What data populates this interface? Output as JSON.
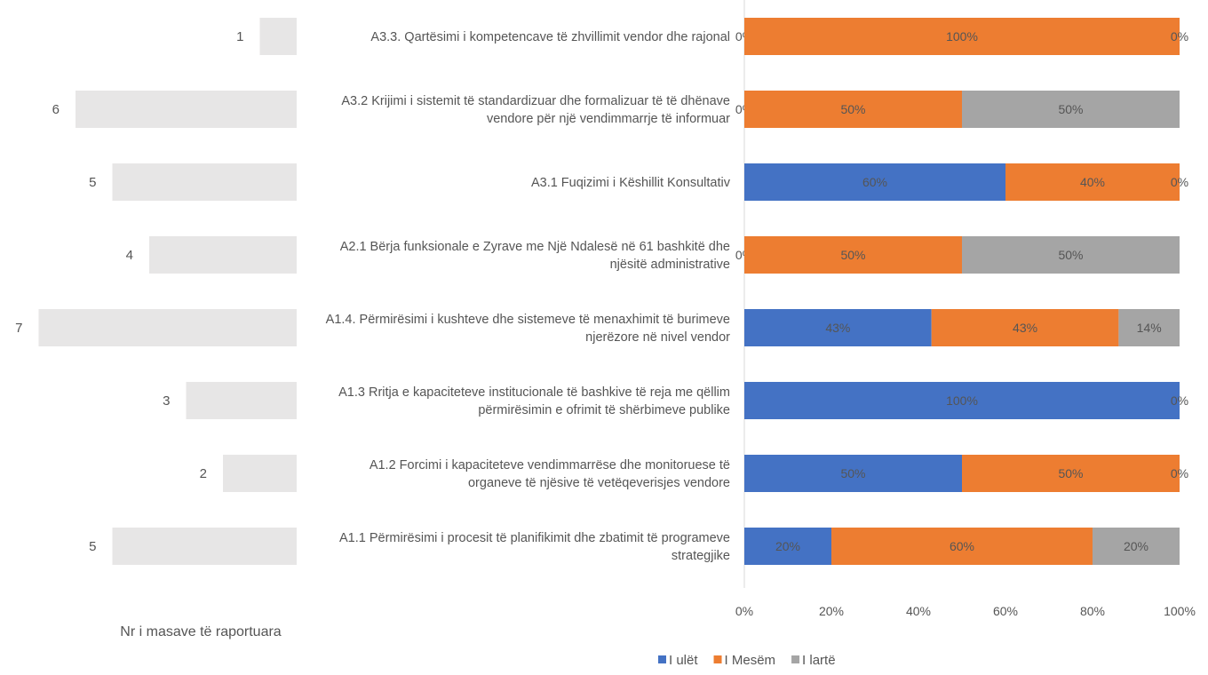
{
  "chart_data": [
    {
      "type": "bar",
      "orientation": "horizontal",
      "title": "",
      "xlabel": "Nr i masave të raportuara",
      "categories": [
        "A3.3. Qartësimi i kompetencave të zhvillimit vendor dhe rajonal",
        "A3.2 Krijimi i sistemit të standardizuar dhe formalizuar të të dhënave vendore për një vendimmarrje të informuar",
        "A3.1 Fuqizimi i Këshillit Konsultativ",
        "A2.1 Bërja funksionale e Zyrave me Një Ndalesë në 61 bashkitë dhe njësitë administrative",
        "A1.4. Përmirësimi i kushteve dhe sistemeve të menaxhimit të burimeve njerëzore në nivel vendor",
        "A1.3 Rritja e kapaciteteve institucionale të bashkive të reja me qëllim përmirësimin e ofrimit të shërbimeve publike",
        "A1.2 Forcimi i kapaciteteve vendimmarrëse dhe monitoruese të organeve të njësive të vetëqeverisjes vendore",
        "A1.1 Përmirësimi i procesit të planifikimit dhe zbatimit të programeve strategjike"
      ],
      "values": [
        1,
        6,
        5,
        4,
        7,
        3,
        2,
        5
      ],
      "bar_color": "#e7e6e6"
    },
    {
      "type": "bar",
      "orientation": "horizontal",
      "stacked": "percent",
      "title": "",
      "categories": [
        "A3.3. Qartësimi i kompetencave të zhvillimit vendor dhe rajonal",
        "A3.2 Krijimi i sistemit të standardizuar dhe formalizuar të të dhënave vendore për një vendimmarrje të informuar",
        "A3.1 Fuqizimi i Këshillit Konsultativ",
        "A2.1 Bërja funksionale e Zyrave me Një Ndalesë në 61 bashkitë dhe njësitë administrative",
        "A1.4. Përmirësimi i kushteve dhe sistemeve të menaxhimit të burimeve njerëzore në nivel vendor",
        "A1.3 Rritja e kapaciteteve institucionale të bashkive të reja me qëllim përmirësimin e ofrimit të shërbimeve publike",
        "A1.2 Forcimi i kapaciteteve vendimmarrëse dhe monitoruese të organeve të njësive të vetëqeverisjes vendore",
        "A1.1 Përmirësimi i procesit të planifikimit dhe zbatimit të programeve strategjike"
      ],
      "series": [
        {
          "name": "I ulët",
          "color": "#4472c4",
          "values": [
            0,
            0,
            60,
            0,
            43,
            100,
            50,
            20
          ],
          "labels": [
            "0%",
            "0%",
            "60%",
            "0%",
            "43%",
            "100%",
            "50%",
            "20%"
          ]
        },
        {
          "name": "I Mesëm",
          "color": "#ed7d31",
          "values": [
            100,
            50,
            40,
            50,
            43,
            0,
            50,
            60
          ],
          "labels": [
            "100%",
            "50%",
            "40%",
            "50%",
            "43%",
            "",
            "50%",
            "60%"
          ]
        },
        {
          "name": "I lartë",
          "color": "#a5a5a5",
          "values": [
            0,
            50,
            0,
            50,
            14,
            0,
            0,
            20
          ],
          "labels": [
            "0%",
            "50%",
            "0%",
            "50%",
            "14%",
            "0%",
            "0%",
            "20%"
          ]
        }
      ],
      "xlim": [
        0,
        100
      ],
      "xticks": [
        "0%",
        "20%",
        "40%",
        "60%",
        "80%",
        "100%"
      ],
      "legend_position": "bottom",
      "grid": false
    }
  ]
}
